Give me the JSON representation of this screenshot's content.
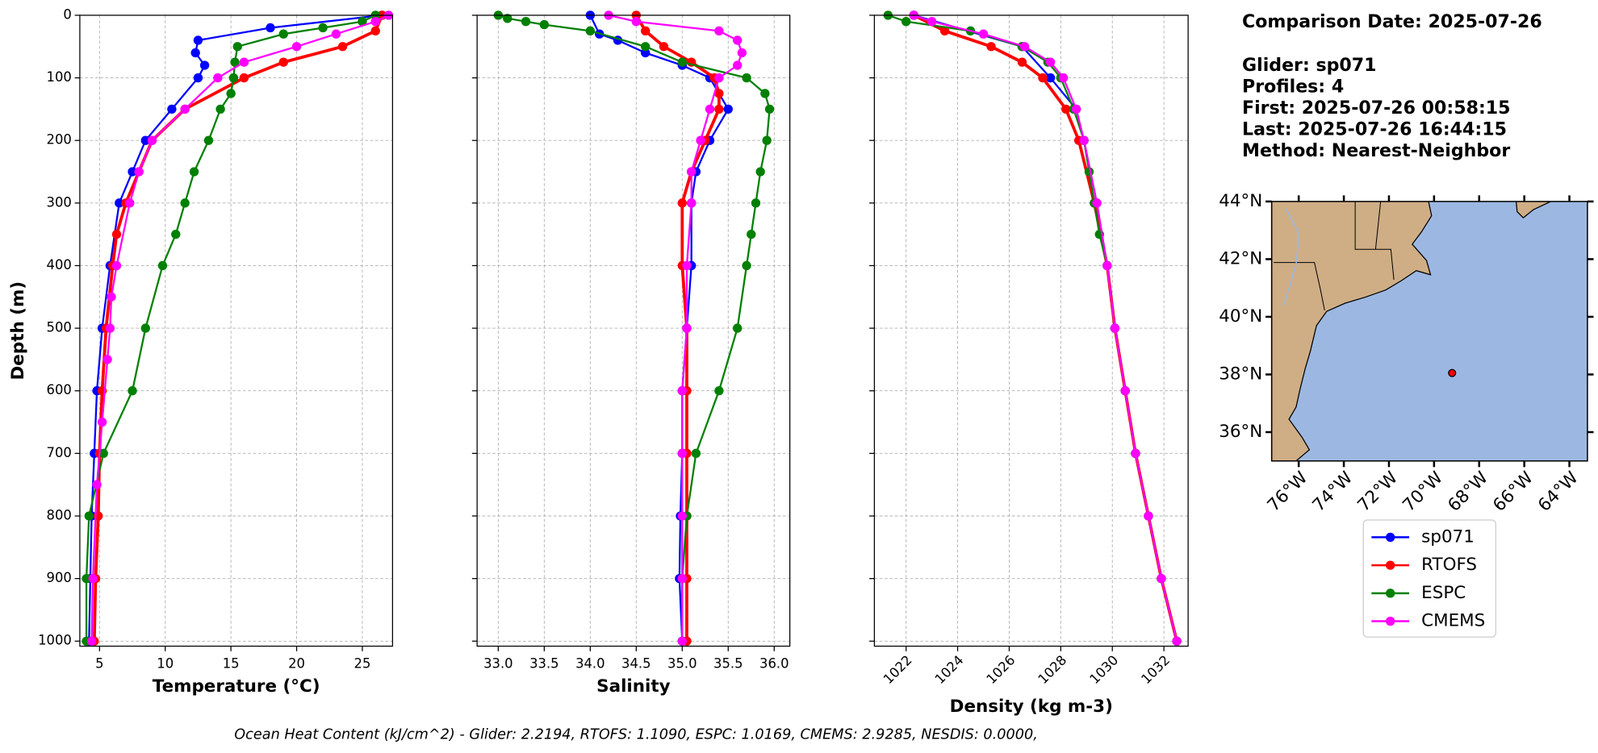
{
  "chart_data": [
    {
      "type": "line",
      "xlabel": "Temperature (°C)",
      "ylabel": "Depth (m)",
      "show_yticklabels": true,
      "grid": true,
      "xlim": [
        3.5,
        27.3
      ],
      "xticks": [
        5,
        10,
        15,
        20,
        25
      ],
      "ylim": [
        0,
        1008
      ],
      "yticks": [
        0,
        100,
        200,
        300,
        400,
        500,
        600,
        700,
        800,
        900,
        1000
      ],
      "inverted_y": true,
      "series": [
        {
          "name": "sp071",
          "color": "#0000ff",
          "y": [
            0,
            20,
            40,
            60,
            80,
            100,
            150,
            200,
            250,
            300,
            400,
            500,
            600,
            700,
            800,
            900,
            1000
          ],
          "x": [
            26.5,
            18,
            12.5,
            12.3,
            13,
            12.5,
            10.5,
            8.5,
            7.5,
            6.5,
            5.8,
            5.2,
            4.8,
            4.6,
            4.4,
            4.3,
            4.2
          ]
        },
        {
          "name": "RTOFS",
          "color": "#ff0000",
          "y": [
            0,
            25,
            50,
            75,
            100,
            150,
            200,
            250,
            300,
            350,
            400,
            500,
            600,
            700,
            800,
            900,
            1000
          ],
          "x": [
            26.5,
            26,
            23.5,
            19,
            16,
            11.5,
            9,
            8,
            7,
            6.3,
            6,
            5.5,
            5.2,
            5,
            4.9,
            4.7,
            4.6
          ]
        },
        {
          "name": "ESPC",
          "color": "#008000",
          "y": [
            0,
            10,
            20,
            30,
            50,
            75,
            100,
            125,
            150,
            200,
            250,
            300,
            350,
            400,
            500,
            600,
            700,
            800,
            900,
            1000
          ],
          "x": [
            26,
            25,
            22,
            19,
            15.5,
            15.3,
            15.2,
            15,
            14.2,
            13.3,
            12.2,
            11.5,
            10.8,
            9.8,
            8.5,
            7.5,
            5.3,
            4.2,
            4,
            4
          ]
        },
        {
          "name": "CMEMS",
          "color": "#ff00ff",
          "y": [
            0,
            10,
            30,
            50,
            75,
            100,
            150,
            200,
            250,
            300,
            400,
            450,
            500,
            550,
            650,
            750,
            900,
            1000
          ],
          "x": [
            27,
            26,
            23,
            20,
            16,
            14,
            11.5,
            9,
            8,
            7.3,
            6.3,
            5.9,
            5.8,
            5.6,
            5.2,
            4.8,
            4.5,
            4.4
          ]
        }
      ]
    },
    {
      "type": "line",
      "xlabel": "Salinity",
      "show_yticklabels": false,
      "grid": true,
      "xlim": [
        32.77,
        36.17
      ],
      "xticks": [
        {
          "value": 33,
          "label": "33.0"
        },
        33.5,
        {
          "value": 34,
          "label": "34.0"
        },
        34.5,
        {
          "value": 35,
          "label": "35.0"
        },
        35.5,
        {
          "value": 36,
          "label": "36.0"
        }
      ],
      "ylim": [
        0,
        1008
      ],
      "yticks": [
        0,
        100,
        200,
        300,
        400,
        500,
        600,
        700,
        800,
        900,
        1000
      ],
      "inverted_y": true,
      "series": [
        {
          "name": "sp071",
          "color": "#0000ff",
          "y": [
            0,
            30,
            40,
            60,
            80,
            100,
            150,
            200,
            250,
            300,
            400,
            500,
            600,
            700,
            800,
            900,
            1000
          ],
          "x": [
            34.0,
            34.1,
            34.3,
            34.6,
            35.0,
            35.3,
            35.5,
            35.3,
            35.15,
            35.1,
            35.1,
            35.05,
            35.0,
            35.0,
            34.98,
            34.97,
            35.0
          ]
        },
        {
          "name": "RTOFS",
          "color": "#ff0000",
          "y": [
            0,
            25,
            50,
            75,
            100,
            125,
            150,
            200,
            250,
            300,
            400,
            500,
            600,
            700,
            800,
            900,
            1000
          ],
          "x": [
            34.5,
            34.6,
            34.8,
            35.1,
            35.35,
            35.4,
            35.4,
            35.25,
            35.1,
            35.0,
            35.0,
            35.05,
            35.05,
            35.05,
            35.05,
            35.05,
            35.05
          ]
        },
        {
          "name": "ESPC",
          "color": "#008000",
          "y": [
            0,
            5,
            10,
            15,
            25,
            50,
            75,
            100,
            125,
            150,
            200,
            250,
            300,
            350,
            400,
            500,
            600,
            700,
            800,
            900,
            1000
          ],
          "x": [
            33.0,
            33.1,
            33.3,
            33.5,
            34.0,
            34.6,
            35.0,
            35.7,
            35.9,
            35.95,
            35.92,
            35.85,
            35.8,
            35.75,
            35.7,
            35.6,
            35.4,
            35.15,
            35.05,
            35.0,
            35.0
          ]
        },
        {
          "name": "CMEMS",
          "color": "#ff00ff",
          "y": [
            0,
            10,
            25,
            40,
            60,
            80,
            100,
            150,
            200,
            250,
            300,
            400,
            500,
            600,
            700,
            800,
            900,
            1000
          ],
          "x": [
            34.2,
            34.5,
            35.4,
            35.6,
            35.65,
            35.6,
            35.4,
            35.3,
            35.2,
            35.1,
            35.1,
            35.05,
            35.05,
            35.0,
            35.0,
            35.0,
            35.0,
            35.0
          ]
        }
      ]
    },
    {
      "type": "line",
      "xlabel": "Density (kg m-3)",
      "show_yticklabels": false,
      "grid": true,
      "xtick_rotation": 45,
      "xlim": [
        1020.77,
        1032.94
      ],
      "xticks": [
        1022,
        1024,
        1026,
        1028,
        1030,
        1032
      ],
      "ylim": [
        0,
        1008
      ],
      "yticks": [
        0,
        100,
        200,
        300,
        400,
        500,
        600,
        700,
        800,
        900,
        1000
      ],
      "inverted_y": true,
      "series": [
        {
          "name": "sp071",
          "color": "#0000ff",
          "y": [
            0,
            50,
            100,
            150,
            200,
            300,
            400,
            500,
            600,
            700,
            800,
            900,
            1000
          ],
          "x": [
            1022.3,
            1026.5,
            1027.6,
            1028.6,
            1028.9,
            1029.4,
            1029.8,
            1030.1,
            1030.5,
            1030.9,
            1031.4,
            1031.9,
            1032.5
          ]
        },
        {
          "name": "RTOFS",
          "color": "#ff0000",
          "y": [
            0,
            25,
            50,
            75,
            100,
            150,
            200,
            300,
            400,
            500,
            600,
            700,
            800,
            900,
            1000
          ],
          "x": [
            1022.3,
            1023.5,
            1025.3,
            1026.5,
            1027.3,
            1028.2,
            1028.7,
            1029.3,
            1029.8,
            1030.1,
            1030.5,
            1030.9,
            1031.4,
            1031.9,
            1032.5
          ]
        },
        {
          "name": "ESPC",
          "color": "#008000",
          "y": [
            0,
            10,
            25,
            50,
            75,
            100,
            150,
            200,
            250,
            300,
            350,
            400,
            500,
            600,
            700,
            800,
            900,
            1000
          ],
          "x": [
            1021.3,
            1022,
            1024.5,
            1026.5,
            1027.5,
            1028,
            1028.5,
            1028.9,
            1029.1,
            1029.3,
            1029.5,
            1029.8,
            1030.1,
            1030.5,
            1030.9,
            1031.4,
            1031.9,
            1032.5
          ]
        },
        {
          "name": "CMEMS",
          "color": "#ff00ff",
          "y": [
            0,
            10,
            30,
            50,
            75,
            100,
            150,
            200,
            300,
            400,
            500,
            600,
            700,
            800,
            900,
            1000
          ],
          "x": [
            1022.3,
            1023,
            1025,
            1026.6,
            1027.6,
            1028.1,
            1028.6,
            1028.9,
            1029.4,
            1029.8,
            1030.1,
            1030.5,
            1030.9,
            1031.4,
            1031.9,
            1032.5
          ]
        }
      ]
    },
    {
      "type": "map",
      "xlim": [
        -77.2,
        -63.2
      ],
      "ylim": [
        35,
        44
      ],
      "xticks": [
        {
          "value": -76,
          "label": "76°W"
        },
        {
          "value": -74,
          "label": "74°W"
        },
        {
          "value": -72,
          "label": "72°W"
        },
        {
          "value": -70,
          "label": "70°W"
        },
        {
          "value": -68,
          "label": "68°W"
        },
        {
          "value": -66,
          "label": "66°W"
        },
        {
          "value": -64,
          "label": "64°W"
        }
      ],
      "yticks": [
        {
          "value": 36,
          "label": "36°N"
        },
        {
          "value": 38,
          "label": "38°N"
        },
        {
          "value": 40,
          "label": "40°N"
        },
        {
          "value": 42,
          "label": "42°N"
        },
        {
          "value": 44,
          "label": "44°N"
        }
      ],
      "x": [
        -69.2
      ],
      "y": [
        38.05
      ],
      "color": "#ff0000"
    }
  ],
  "info": [
    "Comparison Date: 2025-07-26",
    "Glider: sp071",
    "Profiles: 4",
    "First: 2025-07-26 00:58:15",
    "Last: 2025-07-26 16:44:15",
    "Method: Nearest-Neighbor"
  ],
  "footer": "Ocean Heat Content (kJ/cm^2) - Glider: 2.2194,  RTOFS: 1.1090,  ESPC: 1.0169,  CMEMS: 2.9285,  NESDIS: 0.0000,"
}
